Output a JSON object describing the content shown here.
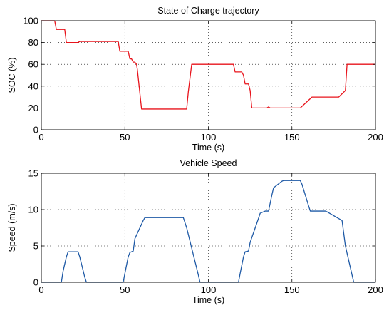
{
  "chart_data": [
    {
      "type": "line",
      "title": "State of Charge trajectory",
      "xlabel": "Time (s)",
      "ylabel": "SOC (%)",
      "xlim": [
        0,
        200
      ],
      "ylim": [
        0,
        100
      ],
      "xticks": [
        0,
        50,
        100,
        150,
        200
      ],
      "yticks": [
        0,
        20,
        40,
        60,
        80,
        100
      ],
      "grid": true,
      "series": [
        {
          "color": "#e8141c",
          "x": [
            0,
            8,
            9,
            14,
            15,
            22,
            23,
            46,
            47,
            52,
            53,
            54,
            55,
            56,
            57,
            57.5,
            60,
            87,
            88,
            90,
            115,
            116,
            120,
            121,
            122,
            124,
            125,
            126,
            135,
            136,
            137,
            155,
            162,
            178,
            180,
            182,
            183,
            200
          ],
          "y": [
            100,
            100,
            92,
            92,
            80,
            80,
            81,
            81,
            72,
            72,
            65,
            65,
            62,
            62,
            60,
            55,
            19,
            19,
            35,
            60,
            60,
            53,
            53,
            50,
            42,
            42,
            36,
            20,
            20,
            21,
            20,
            20,
            30,
            30,
            33,
            36,
            60,
            60
          ]
        }
      ]
    },
    {
      "type": "line",
      "title": "Vehicle Speed",
      "xlabel": "Time (s)",
      "ylabel": "Speed (m/s)",
      "xlim": [
        0,
        200
      ],
      "ylim": [
        0,
        15
      ],
      "xticks": [
        0,
        50,
        100,
        150,
        200
      ],
      "yticks": [
        0,
        5,
        10,
        15
      ],
      "grid": true,
      "series": [
        {
          "color": "#1f5aa6",
          "x": [
            0,
            12,
            13,
            15,
            16,
            22,
            23,
            26,
            27,
            49,
            50,
            52,
            53,
            55,
            56,
            61,
            62,
            85,
            87,
            94,
            95,
            118,
            119,
            121,
            122,
            124,
            125,
            130,
            131,
            134,
            136,
            138,
            139,
            144,
            145,
            155,
            156,
            160,
            161,
            170,
            171,
            180,
            182,
            186,
            187,
            200
          ],
          "y": [
            0,
            0,
            1.5,
            3.5,
            4.2,
            4.2,
            3.5,
            0.7,
            0,
            0,
            1.2,
            3.5,
            4.1,
            4.3,
            6,
            8.5,
            8.9,
            8.9,
            7.5,
            1,
            0,
            0,
            1.2,
            3.5,
            4.2,
            4.3,
            5.5,
            8.8,
            9.5,
            9.8,
            9.8,
            12,
            13,
            13.9,
            14,
            14,
            13.5,
            10.5,
            9.8,
            9.8,
            9.7,
            8.5,
            5,
            1,
            0,
            0
          ]
        }
      ]
    }
  ]
}
